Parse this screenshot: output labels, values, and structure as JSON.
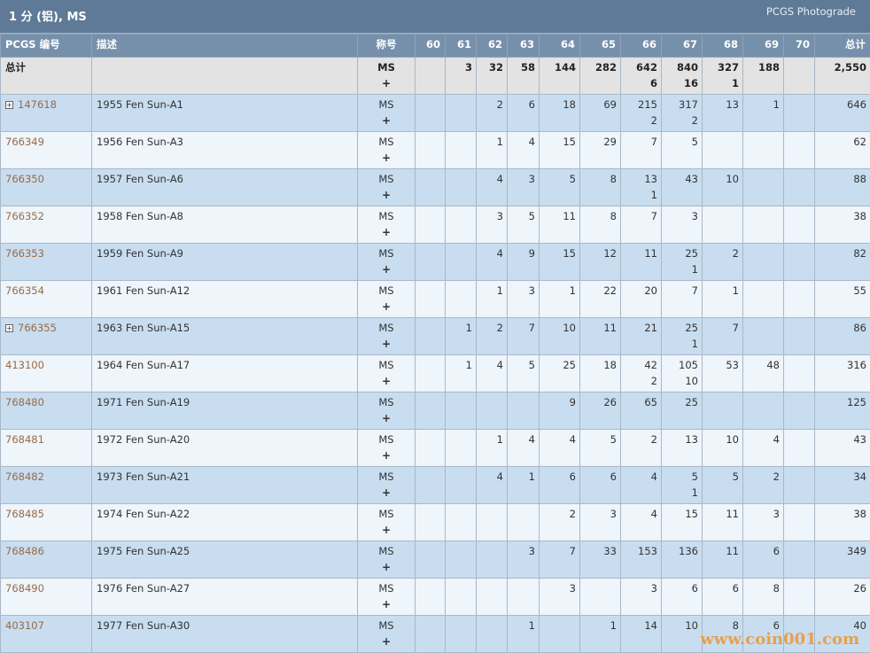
{
  "title": "1 分 (铝), MS",
  "photograde_link": "PCGS Photograde",
  "columns": [
    "PCGS 编号",
    "描述",
    "称号",
    "60",
    "61",
    "62",
    "63",
    "64",
    "65",
    "66",
    "67",
    "68",
    "69",
    "70",
    "总计"
  ],
  "total": {
    "label": "总计",
    "desig": "MS",
    "plus": "+",
    "grades": [
      "",
      "3",
      "32",
      "58",
      "144",
      "282",
      "642",
      "840",
      "327",
      "188",
      ""
    ],
    "plus_grades": [
      "",
      "",
      "",
      "",
      "",
      "",
      "6",
      "16",
      "1",
      "",
      ""
    ],
    "sum": "2,550"
  },
  "rows": [
    {
      "id": "147618",
      "expand": true,
      "desc": "1955 Fen Sun-A1",
      "grades": [
        "",
        "",
        "2",
        "6",
        "18",
        "69",
        "215",
        "317",
        "13",
        "1",
        ""
      ],
      "plus_grades": [
        "",
        "",
        "",
        "",
        "",
        "",
        "2",
        "2",
        "",
        "",
        ""
      ],
      "sum": "646"
    },
    {
      "id": "766349",
      "expand": false,
      "desc": "1956 Fen Sun-A3",
      "grades": [
        "",
        "",
        "1",
        "4",
        "15",
        "29",
        "7",
        "5",
        "",
        "",
        ""
      ],
      "plus_grades": [
        "",
        "",
        "",
        "",
        "",
        "",
        "",
        "",
        "",
        "",
        ""
      ],
      "sum": "62"
    },
    {
      "id": "766350",
      "expand": false,
      "desc": "1957 Fen Sun-A6",
      "grades": [
        "",
        "",
        "4",
        "3",
        "5",
        "8",
        "13",
        "43",
        "10",
        "",
        ""
      ],
      "plus_grades": [
        "",
        "",
        "",
        "",
        "",
        "",
        "1",
        "",
        "",
        "",
        ""
      ],
      "sum": "88"
    },
    {
      "id": "766352",
      "expand": false,
      "desc": "1958 Fen Sun-A8",
      "grades": [
        "",
        "",
        "3",
        "5",
        "11",
        "8",
        "7",
        "3",
        "",
        "",
        ""
      ],
      "plus_grades": [
        "",
        "",
        "",
        "",
        "",
        "",
        "",
        "",
        "",
        "",
        ""
      ],
      "sum": "38"
    },
    {
      "id": "766353",
      "expand": false,
      "desc": "1959 Fen Sun-A9",
      "grades": [
        "",
        "",
        "4",
        "9",
        "15",
        "12",
        "11",
        "25",
        "2",
        "",
        ""
      ],
      "plus_grades": [
        "",
        "",
        "",
        "",
        "",
        "",
        "",
        "1",
        "",
        "",
        ""
      ],
      "sum": "82"
    },
    {
      "id": "766354",
      "expand": false,
      "desc": "1961 Fen Sun-A12",
      "grades": [
        "",
        "",
        "1",
        "3",
        "1",
        "22",
        "20",
        "7",
        "1",
        "",
        ""
      ],
      "plus_grades": [
        "",
        "",
        "",
        "",
        "",
        "",
        "",
        "",
        "",
        "",
        ""
      ],
      "sum": "55"
    },
    {
      "id": "766355",
      "expand": true,
      "desc": "1963 Fen Sun-A15",
      "grades": [
        "",
        "1",
        "2",
        "7",
        "10",
        "11",
        "21",
        "25",
        "7",
        "",
        ""
      ],
      "plus_grades": [
        "",
        "",
        "",
        "",
        "",
        "",
        "",
        "1",
        "",
        "",
        ""
      ],
      "sum": "86"
    },
    {
      "id": "413100",
      "expand": false,
      "desc": "1964 Fen Sun-A17",
      "grades": [
        "",
        "1",
        "4",
        "5",
        "25",
        "18",
        "42",
        "105",
        "53",
        "48",
        ""
      ],
      "plus_grades": [
        "",
        "",
        "",
        "",
        "",
        "",
        "2",
        "10",
        "",
        "",
        ""
      ],
      "sum": "316"
    },
    {
      "id": "768480",
      "expand": false,
      "desc": "1971 Fen Sun-A19",
      "grades": [
        "",
        "",
        "",
        "",
        "9",
        "26",
        "65",
        "25",
        "",
        "",
        ""
      ],
      "plus_grades": [
        "",
        "",
        "",
        "",
        "",
        "",
        "",
        "",
        "",
        "",
        ""
      ],
      "sum": "125"
    },
    {
      "id": "768481",
      "expand": false,
      "desc": "1972 Fen Sun-A20",
      "grades": [
        "",
        "",
        "1",
        "4",
        "4",
        "5",
        "2",
        "13",
        "10",
        "4",
        ""
      ],
      "plus_grades": [
        "",
        "",
        "",
        "",
        "",
        "",
        "",
        "",
        "",
        "",
        ""
      ],
      "sum": "43"
    },
    {
      "id": "768482",
      "expand": false,
      "desc": "1973 Fen Sun-A21",
      "grades": [
        "",
        "",
        "4",
        "1",
        "6",
        "6",
        "4",
        "5",
        "5",
        "2",
        ""
      ],
      "plus_grades": [
        "",
        "",
        "",
        "",
        "",
        "",
        "",
        "1",
        "",
        "",
        ""
      ],
      "sum": "34"
    },
    {
      "id": "768485",
      "expand": false,
      "desc": "1974 Fen Sun-A22",
      "grades": [
        "",
        "",
        "",
        "",
        "2",
        "3",
        "4",
        "15",
        "11",
        "3",
        ""
      ],
      "plus_grades": [
        "",
        "",
        "",
        "",
        "",
        "",
        "",
        "",
        "",
        "",
        ""
      ],
      "sum": "38"
    },
    {
      "id": "768486",
      "expand": false,
      "desc": "1975 Fen Sun-A25",
      "grades": [
        "",
        "",
        "",
        "3",
        "7",
        "33",
        "153",
        "136",
        "11",
        "6",
        ""
      ],
      "plus_grades": [
        "",
        "",
        "",
        "",
        "",
        "",
        "",
        "",
        "",
        "",
        ""
      ],
      "sum": "349"
    },
    {
      "id": "768490",
      "expand": false,
      "desc": "1976 Fen Sun-A27",
      "grades": [
        "",
        "",
        "",
        "",
        "3",
        "",
        "3",
        "6",
        "6",
        "8",
        ""
      ],
      "plus_grades": [
        "",
        "",
        "",
        "",
        "",
        "",
        "",
        "",
        "",
        "",
        ""
      ],
      "sum": "26"
    },
    {
      "id": "403107",
      "expand": false,
      "desc": "1977 Fen Sun-A30",
      "grades": [
        "",
        "",
        "",
        "1",
        "",
        "1",
        "14",
        "10",
        "8",
        "6",
        ""
      ],
      "plus_grades": [
        "",
        "",
        "",
        "",
        "",
        "",
        "",
        "",
        "",
        "",
        ""
      ],
      "sum": "40"
    }
  ],
  "row_desig": "MS",
  "row_plus": "+",
  "expand_glyph": "+",
  "watermark": "www.coin001.com"
}
